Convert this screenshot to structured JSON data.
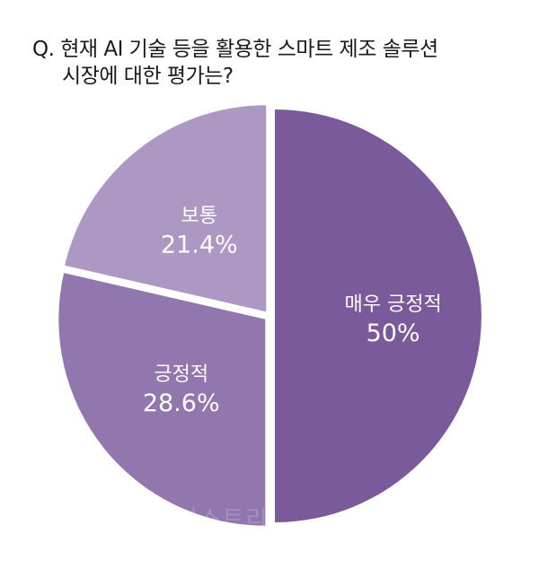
{
  "question": {
    "line1": "Q. 현재 AI 기술 등을 활용한 스마트 제조 솔루션",
    "line2": "시장에 대한 평가는?"
  },
  "watermark": "인더스트리",
  "chart_data": {
    "type": "pie",
    "slices": [
      {
        "label": "매우 긍정적",
        "value": 50,
        "display": "50%",
        "color": "#7a5a9a"
      },
      {
        "label": "긍정적",
        "value": 28.6,
        "display": "28.6%",
        "color": "#9276ae"
      },
      {
        "label": "보통",
        "value": 21.4,
        "display": "21.4%",
        "color": "#ad98c4"
      }
    ],
    "start": "top, clockwise",
    "separator_color": "#ffffff"
  }
}
